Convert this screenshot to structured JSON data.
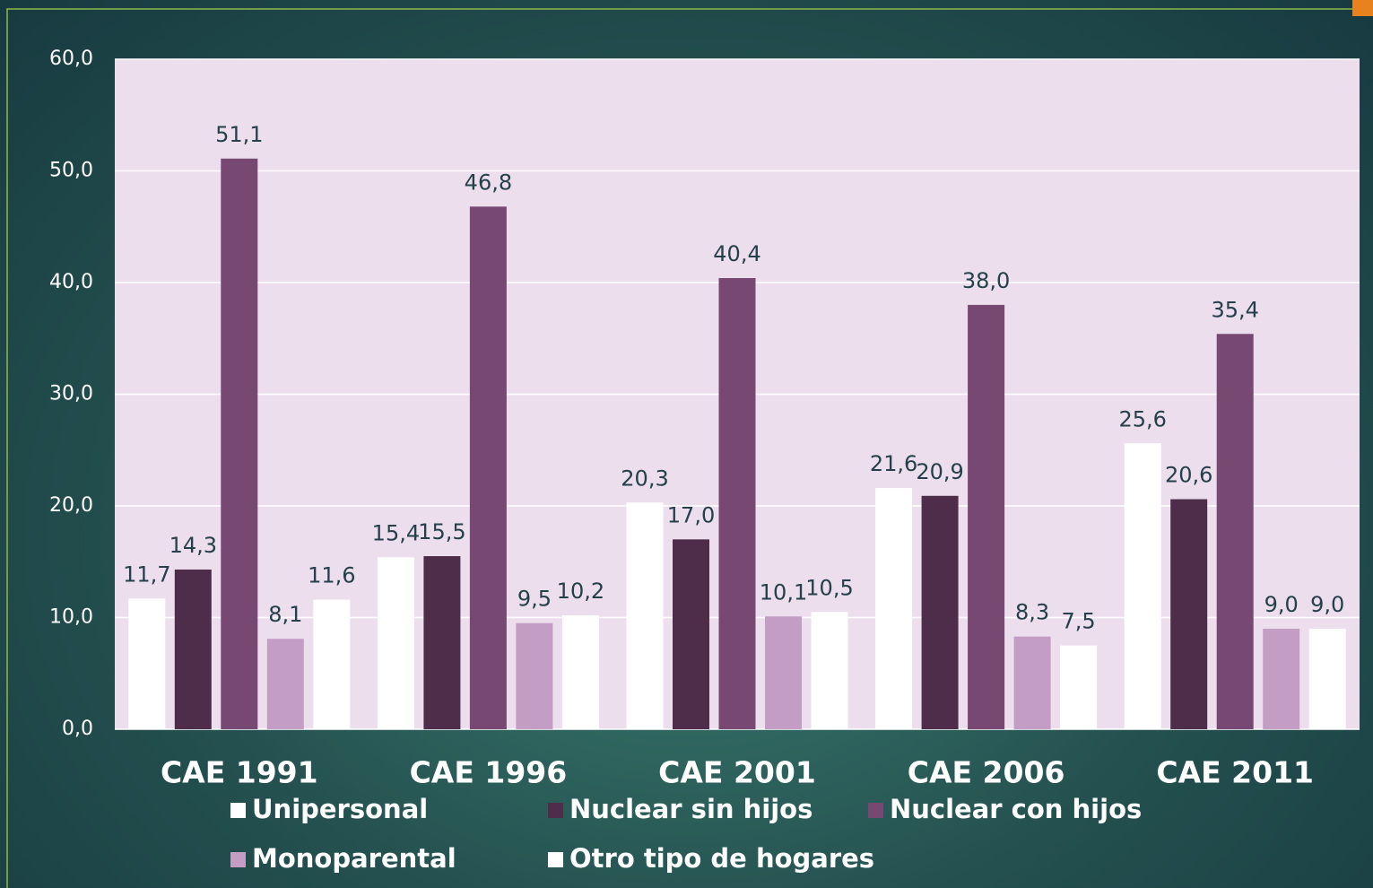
{
  "chart_data": {
    "type": "bar",
    "categories": [
      "CAE 1991",
      "CAE 1996",
      "CAE 2001",
      "CAE 2006",
      "CAE 2011"
    ],
    "series": [
      {
        "name": "Unipersonal",
        "color": "#ffffff",
        "values": [
          11.7,
          15.4,
          20.3,
          21.6,
          25.6
        ],
        "value_labels": [
          "11,7",
          "15,4",
          "20,3",
          "21,6",
          "25,6"
        ]
      },
      {
        "name": "Nuclear sin hijos",
        "color": "#4e2d4b",
        "values": [
          14.3,
          15.5,
          17.0,
          20.9,
          20.6
        ],
        "value_labels": [
          "14,3",
          "15,5",
          "17,0",
          "20,9",
          "20,6"
        ]
      },
      {
        "name": "Nuclear con hijos",
        "color": "#764872",
        "values": [
          51.1,
          46.8,
          40.4,
          38.0,
          35.4
        ],
        "value_labels": [
          "51,1",
          "46,8",
          "40,4",
          "38,0",
          "35,4"
        ]
      },
      {
        "name": "Monoparental",
        "color": "#c49dc4",
        "values": [
          8.1,
          9.5,
          10.1,
          8.3,
          9.0
        ],
        "value_labels": [
          "8,1",
          "9,5",
          "10,1",
          "8,3",
          "9,0"
        ]
      },
      {
        "name": "Otro tipo de hogares",
        "color": "#ffffff",
        "values": [
          11.6,
          10.2,
          10.5,
          7.5,
          9.0
        ],
        "value_labels": [
          "11,6",
          "10,2",
          "10,5",
          "7,5",
          "9,0"
        ]
      }
    ],
    "ylim": [
      0,
      60
    ],
    "yticks": [
      {
        "value": 0,
        "label": "0,0"
      },
      {
        "value": 10,
        "label": "10,0"
      },
      {
        "value": 20,
        "label": "20,0"
      },
      {
        "value": 30,
        "label": "30,0"
      },
      {
        "value": 40,
        "label": "40,0"
      },
      {
        "value": 50,
        "label": "50,0"
      },
      {
        "value": 60,
        "label": "60,0"
      }
    ],
    "grid": true,
    "legend": "bottom"
  }
}
